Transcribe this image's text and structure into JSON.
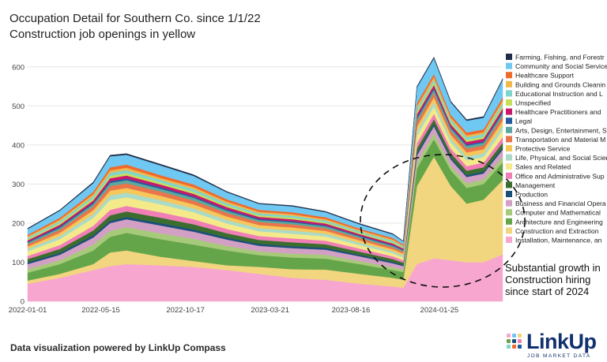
{
  "title_line1": "Occupation Detail for Southern Co. since 1/1/22",
  "title_line2": "Construction job openings in yellow",
  "footer": "Data visualization powered by LinkUp Compass",
  "logo": {
    "word": "LinkUp",
    "tagline": "JOB MARKET DATA"
  },
  "annotation": "Substantial growth in Construction hiring since start of 2024",
  "chart_data": {
    "type": "area",
    "stacked": true,
    "x_ticks": [
      "2022-01-01",
      "2022-05-15",
      "2022-10-17",
      "2023-03-21",
      "2023-08-16",
      "2024-01-25"
    ],
    "y_ticks": [
      0,
      100,
      200,
      300,
      400,
      500,
      600
    ],
    "ylim": [
      0,
      650
    ],
    "xlim": [
      "2022-01-01",
      "2024-05-20"
    ],
    "grid": true,
    "legend_position": "right",
    "x_anchor_dates": [
      "2022-01-01",
      "2022-03-01",
      "2022-05-01",
      "2022-06-01",
      "2022-07-01",
      "2022-09-01",
      "2022-11-01",
      "2023-01-01",
      "2023-03-01",
      "2023-05-01",
      "2023-07-01",
      "2023-09-01",
      "2023-11-01",
      "2023-11-20",
      "2023-12-15",
      "2024-01-15",
      "2024-02-15",
      "2024-03-15",
      "2024-04-15",
      "2024-05-20"
    ],
    "series": [
      {
        "name": "Installation, Maintenance, an",
        "color": "#f7a6cf",
        "values": [
          45,
          60,
          80,
          90,
          95,
          92,
          88,
          80,
          70,
          60,
          55,
          45,
          38,
          35,
          95,
          110,
          105,
          100,
          100,
          120
        ]
      },
      {
        "name": "Construction and Extraction",
        "color": "#f2d67f",
        "values": [
          8,
          10,
          15,
          35,
          35,
          22,
          15,
          12,
          18,
          22,
          26,
          25,
          22,
          20,
          200,
          260,
          190,
          150,
          160,
          190
        ]
      },
      {
        "name": "Architecture and Engineering",
        "color": "#65a54a",
        "values": [
          20,
          25,
          35,
          40,
          45,
          45,
          42,
          38,
          30,
          30,
          28,
          25,
          20,
          20,
          45,
          45,
          40,
          40,
          40,
          45
        ]
      },
      {
        "name": "Computer and Mathematical",
        "color": "#a7c97a",
        "values": [
          10,
          10,
          15,
          15,
          15,
          15,
          15,
          12,
          10,
          10,
          10,
          8,
          7,
          6,
          15,
          15,
          12,
          12,
          12,
          15
        ]
      },
      {
        "name": "Business and Financial Opera",
        "color": "#d3a0c5",
        "values": [
          12,
          14,
          18,
          20,
          20,
          20,
          18,
          16,
          14,
          14,
          13,
          12,
          10,
          9,
          18,
          18,
          16,
          16,
          15,
          18
        ]
      },
      {
        "name": "Production",
        "color": "#1b4f7a",
        "values": [
          5,
          5,
          6,
          6,
          6,
          6,
          6,
          5,
          5,
          5,
          5,
          4,
          4,
          3,
          6,
          6,
          5,
          5,
          5,
          6
        ]
      },
      {
        "name": "Management",
        "color": "#3b6e2e",
        "values": [
          8,
          10,
          12,
          14,
          14,
          14,
          13,
          11,
          10,
          10,
          9,
          8,
          7,
          6,
          12,
          12,
          11,
          11,
          11,
          12
        ]
      },
      {
        "name": "Office and Administrative Sup",
        "color": "#ef7fb5",
        "values": [
          8,
          10,
          12,
          14,
          14,
          14,
          13,
          11,
          10,
          10,
          9,
          8,
          7,
          6,
          14,
          14,
          12,
          12,
          12,
          14
        ]
      },
      {
        "name": "Sales and Related",
        "color": "#f4ea8a",
        "values": [
          12,
          15,
          20,
          25,
          22,
          20,
          18,
          14,
          12,
          12,
          11,
          9,
          8,
          7,
          18,
          18,
          15,
          15,
          14,
          18
        ]
      },
      {
        "name": "Life, Physical, and Social Scien",
        "color": "#aadbc8",
        "values": [
          6,
          8,
          10,
          12,
          12,
          11,
          10,
          9,
          8,
          8,
          7,
          6,
          5,
          5,
          12,
          12,
          10,
          10,
          10,
          12
        ]
      },
      {
        "name": "Protective Service",
        "color": "#f7c75a",
        "values": [
          6,
          8,
          10,
          12,
          12,
          11,
          10,
          9,
          8,
          8,
          7,
          6,
          5,
          5,
          12,
          12,
          10,
          10,
          10,
          12
        ]
      },
      {
        "name": "Transportation and Material M",
        "color": "#e8764a",
        "values": [
          6,
          8,
          10,
          12,
          12,
          11,
          10,
          9,
          8,
          8,
          7,
          6,
          5,
          5,
          12,
          12,
          10,
          10,
          10,
          12
        ]
      },
      {
        "name": "Arts, Design, Entertainment, S",
        "color": "#5ba8a0",
        "values": [
          4,
          5,
          6,
          8,
          8,
          7,
          7,
          6,
          5,
          5,
          5,
          4,
          4,
          3,
          8,
          8,
          7,
          7,
          7,
          8
        ]
      },
      {
        "name": "Legal",
        "color": "#235a9e",
        "values": [
          2,
          3,
          3,
          4,
          4,
          4,
          3,
          3,
          3,
          3,
          2,
          2,
          2,
          2,
          4,
          4,
          3,
          3,
          3,
          4
        ]
      },
      {
        "name": "Healthcare Practitioners and",
        "color": "#c8186e",
        "values": [
          4,
          5,
          6,
          8,
          8,
          7,
          7,
          6,
          5,
          5,
          5,
          4,
          4,
          3,
          8,
          8,
          7,
          7,
          7,
          8
        ]
      },
      {
        "name": "Unspecified",
        "color": "#c6e05a",
        "values": [
          3,
          4,
          5,
          6,
          6,
          5,
          5,
          4,
          4,
          4,
          3,
          3,
          3,
          2,
          6,
          6,
          5,
          5,
          5,
          6
        ]
      },
      {
        "name": "Educational Instruction and L",
        "color": "#7fd6cc",
        "values": [
          4,
          5,
          6,
          8,
          8,
          7,
          7,
          6,
          5,
          5,
          5,
          4,
          4,
          3,
          8,
          8,
          7,
          7,
          7,
          8
        ]
      },
      {
        "name": "Building and Grounds Cleanin",
        "color": "#f2b84b",
        "values": [
          3,
          4,
          5,
          6,
          6,
          5,
          5,
          4,
          4,
          4,
          3,
          3,
          3,
          2,
          6,
          6,
          5,
          5,
          5,
          6
        ]
      },
      {
        "name": "Healthcare Support",
        "color": "#f06a2c",
        "values": [
          4,
          5,
          6,
          8,
          8,
          7,
          7,
          6,
          5,
          5,
          5,
          4,
          4,
          3,
          8,
          8,
          7,
          7,
          7,
          8
        ]
      },
      {
        "name": "Community and Social Service",
        "color": "#6fc8f2",
        "values": [
          15,
          18,
          22,
          28,
          25,
          25,
          22,
          18,
          15,
          15,
          13,
          11,
          9,
          8,
          40,
          40,
          32,
          30,
          30,
          45
        ]
      },
      {
        "name": "Farming, Fishing, and Forestr",
        "color": "#1f2d4a",
        "values": [
          2,
          2,
          3,
          3,
          3,
          3,
          3,
          2,
          2,
          2,
          2,
          2,
          2,
          1,
          3,
          3,
          3,
          3,
          3,
          3
        ]
      }
    ]
  }
}
